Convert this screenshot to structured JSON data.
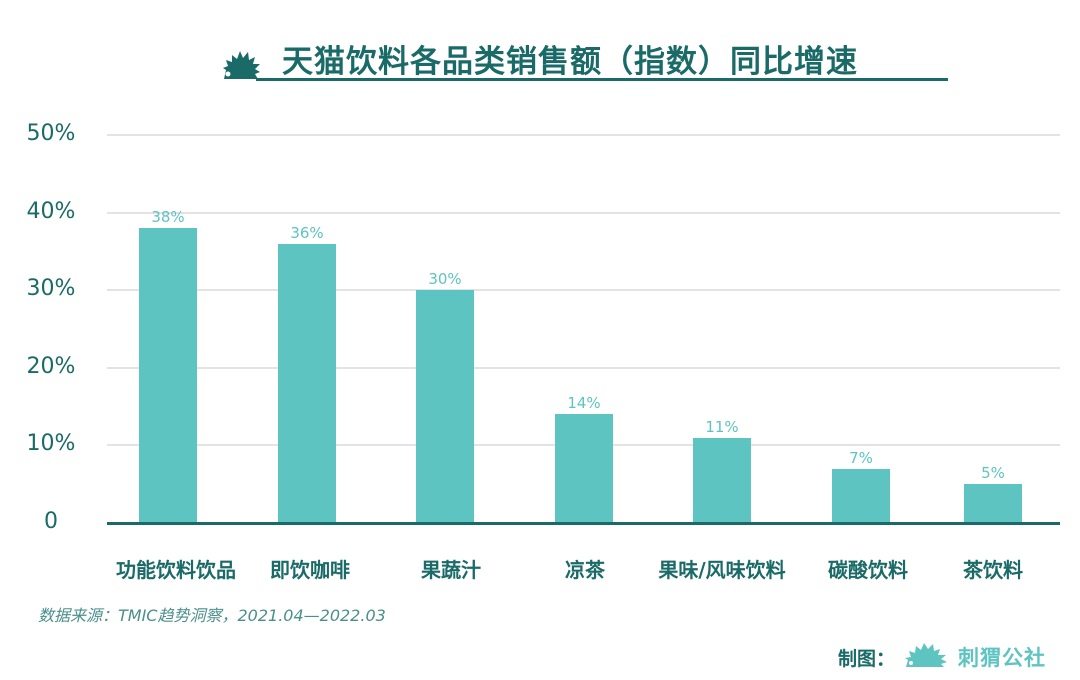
{
  "header": {
    "title": "天猫饮料各品类销售额（指数）同比增速",
    "logo_icon": "hedgehog-icon"
  },
  "chart_data": {
    "type": "bar",
    "title": "天猫饮料各品类销售额（指数）同比增速",
    "xlabel": "",
    "ylabel": "",
    "ylim": [
      0,
      50
    ],
    "yticks": [
      "0",
      "10%",
      "20%",
      "30%",
      "40%",
      "50%"
    ],
    "grid": true,
    "legend": null,
    "categories": [
      "功能饮料饮品",
      "即饮咖啡",
      "果蔬汁",
      "凉茶",
      "果味/风味饮料",
      "碳酸饮料",
      "茶饮料"
    ],
    "values": [
      38,
      36,
      30,
      14,
      11,
      7,
      5
    ],
    "value_labels": [
      "38%",
      "36%",
      "30%",
      "14%",
      "11%",
      "7%",
      "5%"
    ],
    "bar_color": "#5ec4c1"
  },
  "footer": {
    "source": "数据来源：TMIC趋势洞察，2021.04—2022.03",
    "credit_label": "制图：",
    "credit_brand": "刺猬公社",
    "credit_icon": "hedgehog-icon"
  },
  "colors": {
    "primary": "#1a6b68",
    "bar": "#5ec4c1",
    "grid": "#e3e3e6"
  }
}
